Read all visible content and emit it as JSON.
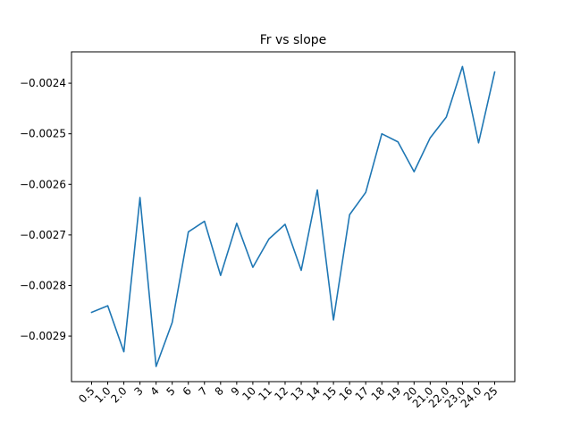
{
  "chart_data": {
    "type": "line",
    "title": "Fr vs slope",
    "xlabel": "",
    "ylabel": "",
    "categories": [
      "0.5",
      "1.0",
      "2.0",
      "3",
      "4",
      "5",
      "6",
      "7",
      "8",
      "9",
      "10",
      "11",
      "12",
      "13",
      "14",
      "15",
      "16",
      "17",
      "18",
      "19",
      "20",
      "21.0",
      "22.0",
      "23.0",
      "24.0",
      "25"
    ],
    "series": [
      {
        "values": [
          -0.002853,
          -0.00284,
          -0.002931,
          -0.002626,
          -0.00296,
          -0.002873,
          -0.002694,
          -0.002673,
          -0.00278,
          -0.002677,
          -0.002764,
          -0.002708,
          -0.002679,
          -0.00277,
          -0.002611,
          -0.002868,
          -0.00266,
          -0.002616,
          -0.0025,
          -0.002516,
          -0.002575,
          -0.002508,
          -0.002467,
          -0.002367,
          -0.002518,
          -0.002378
        ],
        "color": "#1f77b4"
      }
    ],
    "yticks": [
      -0.0029,
      -0.0028,
      -0.0027,
      -0.0026,
      -0.0025,
      -0.0024
    ],
    "ytick_labels": [
      "−0.0029",
      "−0.0028",
      "−0.0027",
      "−0.0026",
      "−0.0025",
      "−0.0024"
    ],
    "ylim": [
      -0.00299,
      -0.002338
    ],
    "grid": false,
    "legend": "none"
  }
}
